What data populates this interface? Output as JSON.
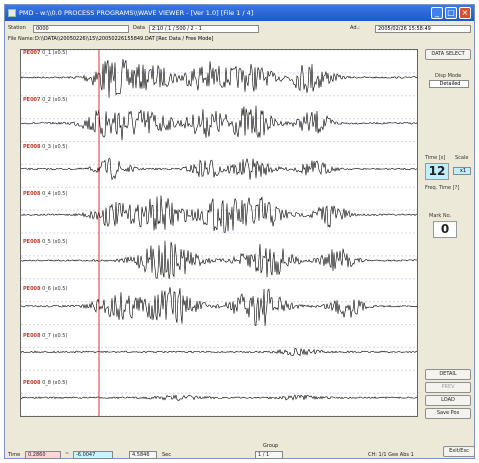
{
  "window": {
    "title": "PMD - w:\\\\0.0 PROCESS PROGRAMS\\\\WAVE VIEWER - [Ver 1.0]  [File 1 / 4]",
    "controls": {
      "minimize": "_",
      "maximize": "□",
      "close": "×"
    }
  },
  "header": {
    "station_label": "Station",
    "station_value": "0000",
    "data_label": "Data",
    "data_value": "2:10 / 1 / 500 / 2 - 1",
    "sample_label": "Ad.:",
    "sample_value": "2005/02/26 15:58:49",
    "file_label": "File Name:",
    "file_value": "D:\\\\DATA\\\\20050226\\\\15\\\\20050226155849.DAT  [Rec Data / Free Mode]"
  },
  "channels": [
    {
      "name": "PE007",
      "label": "0_1 (x0.5)"
    },
    {
      "name": "PE007",
      "label": "0_2 (x0.5)"
    },
    {
      "name": "PE008",
      "label": "0_3 (x0.5)"
    },
    {
      "name": "PE008",
      "label": "0_4 (x0.5)"
    },
    {
      "name": "PE008",
      "label": "0_5 (x0.5)"
    },
    {
      "name": "PE008",
      "label": "0_6 (x0.5)"
    },
    {
      "name": "PE008",
      "label": "0_7 (x0.5)"
    },
    {
      "name": "PE008",
      "label": "0_8 (x0.5)"
    }
  ],
  "side": {
    "top_button": "DATA SELECT",
    "mode_label": "Disp Mode",
    "mode_value": "Detailed",
    "time_label": "Time [s]",
    "time_value": "12",
    "scale_label": "Scale",
    "scale_value": "x1",
    "mark_label": "Mark No.",
    "mark_value": "0",
    "freq_label": "Freq. Time [?]",
    "buttons": [
      "DETAIL",
      "PREV",
      "LOAD",
      "Save Pos"
    ]
  },
  "status": {
    "time_label": "Time",
    "start_value": "0.2860",
    "end_value": "-6.0047",
    "dur_value": "4.5846",
    "unit": "Sec",
    "group_label": "Group",
    "group_value": "1 / 1",
    "ch_info": "CH: 1/1  Gee Abs 1",
    "exit_button": "Exit/Esc"
  },
  "colors": {
    "titlebar": "#2a62d4",
    "cursor": "#e03030",
    "wave": "#000000",
    "time_value_bg": "#bfefff",
    "start_value_bg": "#ffd4d4",
    "end_value_bg": "#c8f4ff"
  }
}
